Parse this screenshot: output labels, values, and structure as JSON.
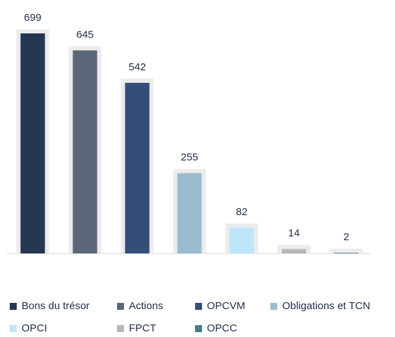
{
  "chart_data": {
    "type": "bar",
    "categories": [
      "Bons du trésor",
      "Actions",
      "OPCVM",
      "Obligations et TCN",
      "OPCI",
      "FPCT",
      "OPCC"
    ],
    "values": [
      699,
      645,
      542,
      255,
      82,
      14,
      2
    ],
    "colors": [
      "#243650",
      "#5b6779",
      "#344e78",
      "#9bbccf",
      "#bde6fa",
      "#b7b7b7",
      "#4b7c8c"
    ],
    "legend": "bottom"
  }
}
